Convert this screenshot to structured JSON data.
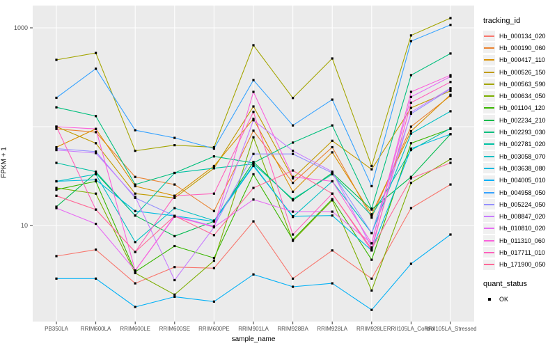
{
  "chart_data": {
    "type": "line",
    "title": "",
    "xlabel": "sample_name",
    "ylabel": "FPKM + 1",
    "y_scale": "log10",
    "ylim": [
      1.05,
      1700
    ],
    "grid": true,
    "legend_position": "right",
    "y_ticks": [
      {
        "value": 1000,
        "label": "1000"
      },
      {
        "value": 10,
        "label": "10"
      }
    ],
    "y_gridlines": [
      10,
      100,
      1000
    ],
    "categories": [
      "PB350LA",
      "RRIM600LA",
      "RRIM600LE",
      "RRIM600SE",
      "RRIM600PE",
      "RRIM901LA",
      "RRIM928BA",
      "RRIM928LA",
      "RRIM928LE",
      "RRII105LA_Control",
      "RRII105LA_Stressed"
    ],
    "series": [
      {
        "name": "Hb_000134_020",
        "color": "#F8766D",
        "values": [
          4.9,
          5.7,
          2.6,
          3.8,
          3.7,
          11,
          2.9,
          5.6,
          2.9,
          15,
          26
        ]
      },
      {
        "name": "Hb_000190_060",
        "color": "#EA8331",
        "values": [
          95,
          88,
          31,
          26,
          14,
          91,
          27,
          62,
          12,
          100,
          205
        ]
      },
      {
        "name": "Hb_000417_110",
        "color": "#D89000",
        "values": [
          62,
          95,
          25,
          20,
          40,
          120,
          22,
          55,
          13,
          90,
          210
        ]
      },
      {
        "name": "Hb_000526_150",
        "color": "#C09B00",
        "values": [
          100,
          68,
          21,
          19,
          38,
          160,
          30,
          72,
          37,
          155,
          230
        ]
      },
      {
        "name": "Hb_000563_590",
        "color": "#A3A500",
        "values": [
          474,
          557,
          57,
          65,
          62,
          667,
          195,
          490,
          40,
          838,
          1255
        ]
      },
      {
        "name": "Hb_000634_050",
        "color": "#7CAE00",
        "values": [
          24,
          21,
          3.3,
          2.0,
          4.4,
          78,
          7.0,
          18,
          2.2,
          27,
          47
        ]
      },
      {
        "name": "Hb_001104_120",
        "color": "#39B600",
        "values": [
          23,
          28,
          3.4,
          6.2,
          4.7,
          33,
          7.2,
          18.5,
          4.5,
          68,
          95
        ]
      },
      {
        "name": "Hb_002234_210",
        "color": "#00BB4E",
        "values": [
          15.5,
          34,
          12.6,
          7.8,
          11,
          44,
          18,
          34,
          14.5,
          31,
          84
        ]
      },
      {
        "name": "Hb_002293_030",
        "color": "#00BF7D",
        "values": [
          157,
          128,
          26,
          34,
          50,
          43,
          69,
          103,
          14.8,
          332,
          550
        ]
      },
      {
        "name": "Hb_002781_020",
        "color": "#00C1A3",
        "values": [
          43,
          35,
          12.6,
          34,
          38,
          42,
          18.5,
          33,
          12.6,
          58,
          96
        ]
      },
      {
        "name": "Hb_003058_070",
        "color": "#00BFC4",
        "values": [
          28,
          33,
          6.8,
          15,
          11.2,
          41,
          12.2,
          28,
          8.4,
          85,
          143
        ]
      },
      {
        "name": "Hb_003638_080",
        "color": "#00BAE0",
        "values": [
          28,
          29,
          14,
          12.5,
          11.0,
          40,
          12.4,
          12.6,
          5.6,
          60,
          84
        ]
      },
      {
        "name": "Hb_004005_010",
        "color": "#00B0F6",
        "values": [
          2.9,
          2.9,
          1.5,
          1.9,
          1.7,
          3.2,
          2.4,
          2.6,
          1.4,
          4.1,
          8.1
        ]
      },
      {
        "name": "Hb_004958_050",
        "color": "#35A2FF",
        "values": [
          196,
          386,
          92,
          77,
          60,
          296,
          103,
          188,
          25,
          734,
          1070
        ]
      },
      {
        "name": "Hb_005224_050",
        "color": "#9590FF",
        "values": [
          60,
          56,
          19,
          12.5,
          9.8,
          53,
          53,
          34,
          8.4,
          135,
          240
        ]
      },
      {
        "name": "Hb_008847_020",
        "color": "#C77CFF",
        "values": [
          58,
          54,
          19.5,
          2.8,
          9.6,
          116,
          57,
          35,
          6.0,
          140,
          245
        ]
      },
      {
        "name": "Hb_010810_020",
        "color": "#E76BF3",
        "values": [
          15,
          10.4,
          3.5,
          12.5,
          9.6,
          18.3,
          13.8,
          13.8,
          6.6,
          200,
          321
        ]
      },
      {
        "name": "Hb_011310_060",
        "color": "#FA62DB",
        "values": [
          100,
          95,
          3.5,
          12.3,
          9.7,
          225,
          31,
          28,
          6.6,
          225,
          332
        ]
      },
      {
        "name": "Hb_017711_010",
        "color": "#FF62BC",
        "values": [
          100,
          14.5,
          5.4,
          20,
          21,
          141,
          8.1,
          21,
          5.6,
          175,
          283
        ]
      },
      {
        "name": "Hb_171900_050",
        "color": "#FF6A98",
        "values": [
          20,
          14.5,
          5.4,
          12.5,
          8.0,
          24,
          36,
          21,
          5.8,
          30,
          43
        ]
      }
    ],
    "point_marker": {
      "shape": "square",
      "color": "#000000"
    }
  },
  "legend": {
    "title": "tracking_id"
  },
  "quant_legend": {
    "title": "quant_status",
    "items": [
      {
        "label": "OK"
      }
    ]
  },
  "colors": {
    "panel_bg": "#EBEBEB",
    "grid": "#FFFFFF",
    "tick": "#333333",
    "tick_label": "#4D4D4D",
    "axis_title": "#000000",
    "legend_key_bg": "#F0F0F0",
    "point": "#000000"
  }
}
